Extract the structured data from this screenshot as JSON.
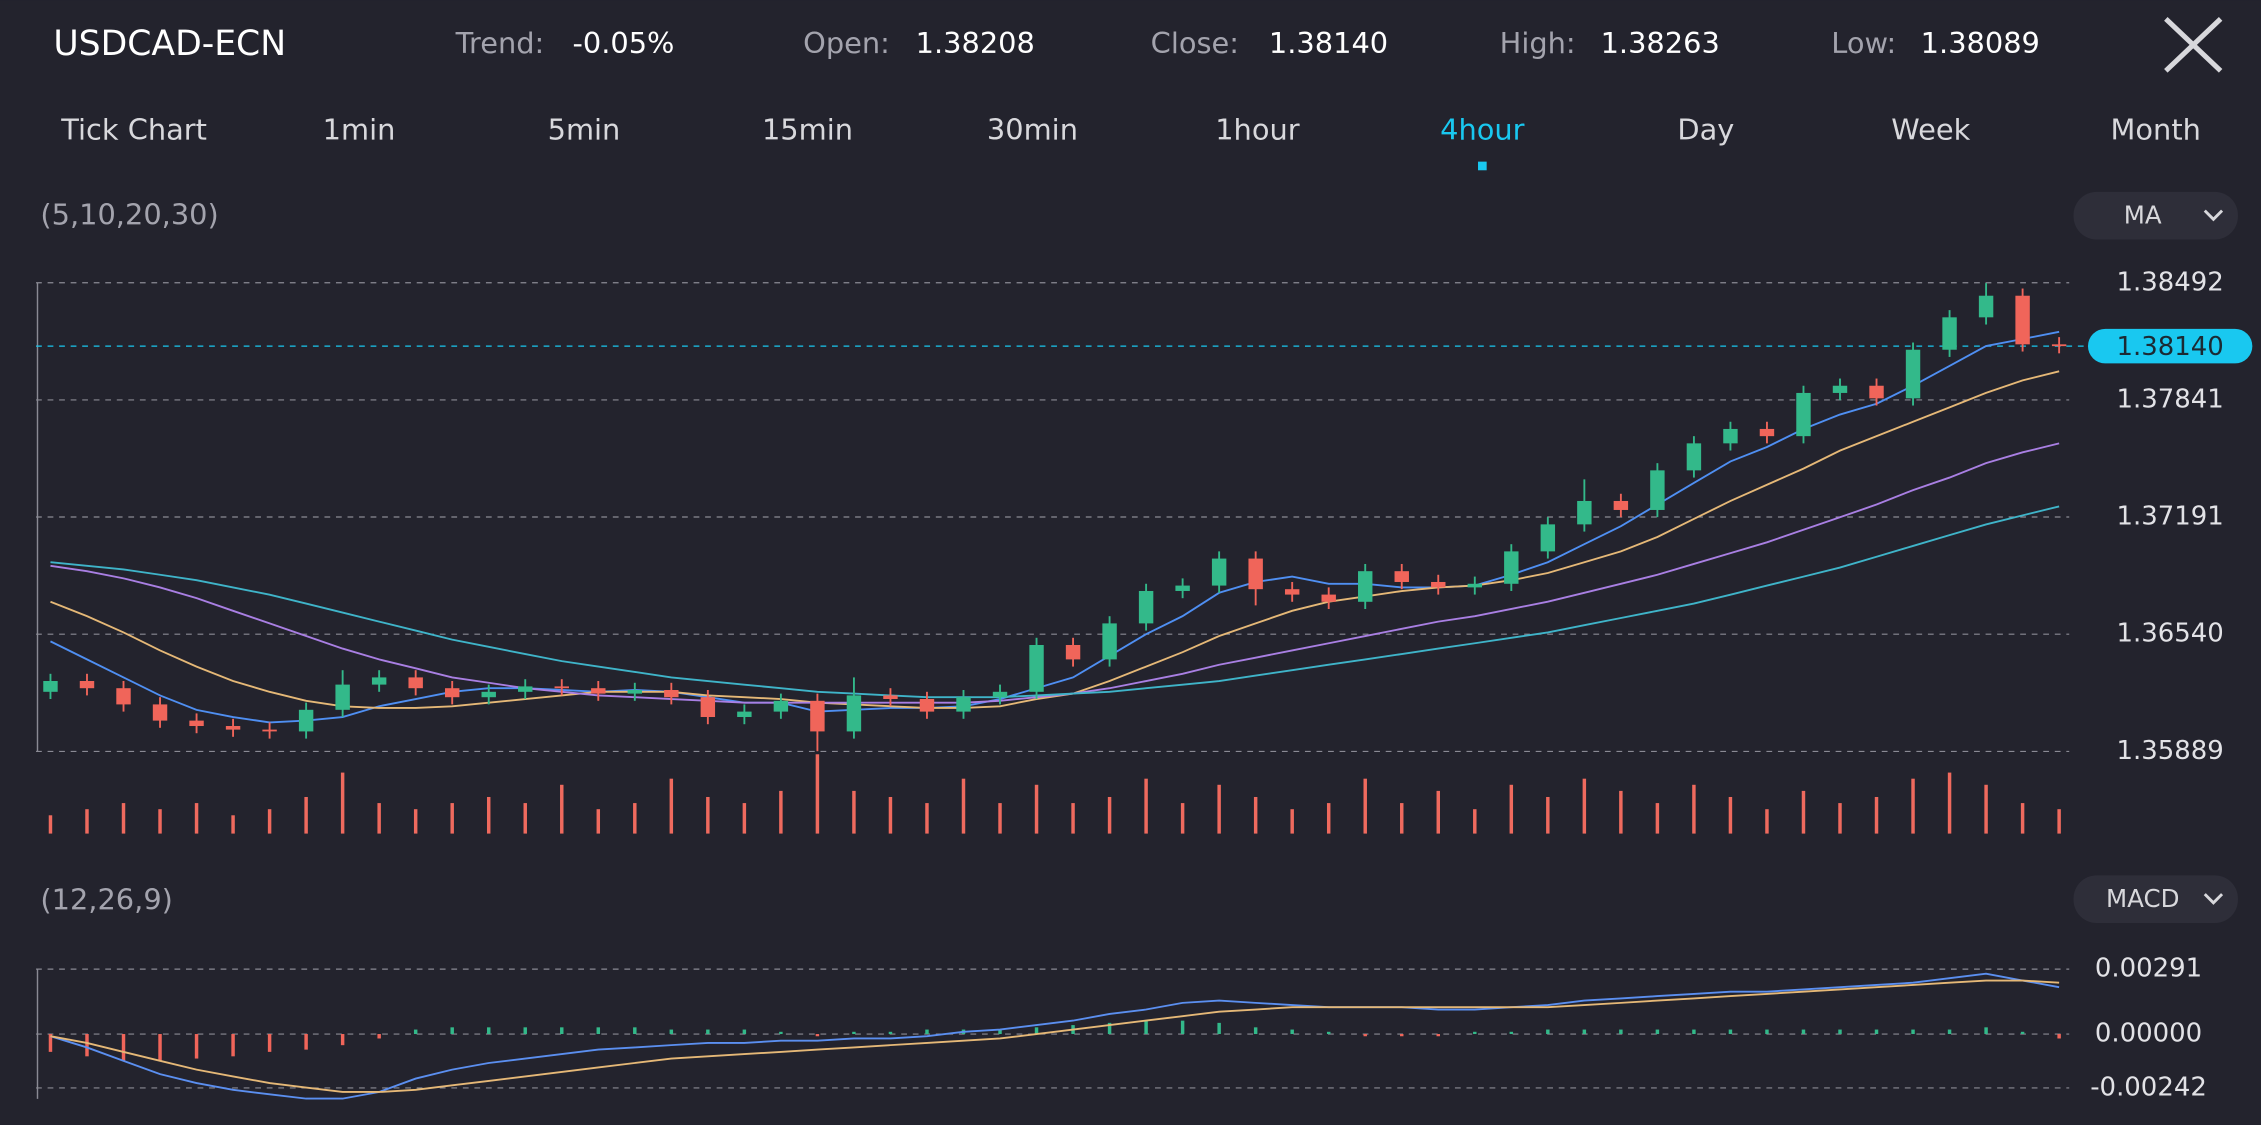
{
  "header": {
    "symbol": "USDCAD-ECN",
    "stats": [
      {
        "label": "Trend:",
        "value": "-0.05%"
      },
      {
        "label": "Open:",
        "value": "1.38208"
      },
      {
        "label": "Close:",
        "value": "1.38140"
      },
      {
        "label": "High:",
        "value": "1.38263"
      },
      {
        "label": "Low:",
        "value": "1.38089"
      }
    ]
  },
  "tabs": [
    "Tick Chart",
    "1min",
    "5min",
    "15min",
    "30min",
    "1hour",
    "4hour",
    "Day",
    "Week",
    "Month"
  ],
  "active_tab": 6,
  "chart_data": [
    {
      "type": "candlestick",
      "indicator_label": "(5,10,20,30)",
      "indicator_button": "MA",
      "up_color": "#33b98a",
      "down_color": "#f0655a",
      "volume_color": "#ef6a5e",
      "ylim": [
        1.35889,
        1.38492
      ],
      "yticks": [
        1.35889,
        {
          "value": 1.3654,
          "label": "1.36540"
        },
        1.37191,
        1.37841,
        1.38492
      ],
      "grid": true,
      "last_price": {
        "value": 1.3814,
        "label": "1.38140"
      },
      "last_price_color": "#19c8f0",
      "open": [
        1.3622,
        1.3628,
        1.3624,
        1.3615,
        1.3606,
        1.3603,
        1.3601,
        1.36,
        1.3612,
        1.3626,
        1.363,
        1.3624,
        1.3619,
        1.3622,
        1.3625,
        1.3624,
        1.3621,
        1.3623,
        1.3619,
        1.3608,
        1.3611,
        1.3617,
        1.36,
        1.362,
        1.3618,
        1.3611,
        1.3619,
        1.3622,
        1.3648,
        1.364,
        1.366,
        1.3678,
        1.3681,
        1.3696,
        1.3679,
        1.3676,
        1.3672,
        1.3689,
        1.3683,
        1.368,
        1.3682,
        1.37,
        1.3715,
        1.3728,
        1.3723,
        1.3745,
        1.376,
        1.3768,
        1.3764,
        1.3788,
        1.3792,
        1.3785,
        1.3812,
        1.383,
        1.3842,
        1.3815
      ],
      "high": [
        1.3632,
        1.3632,
        1.3628,
        1.3619,
        1.361,
        1.3607,
        1.3605,
        1.3616,
        1.3634,
        1.3634,
        1.3634,
        1.3628,
        1.3626,
        1.3629,
        1.3629,
        1.3628,
        1.3627,
        1.3627,
        1.3623,
        1.3615,
        1.3621,
        1.3621,
        1.363,
        1.3624,
        1.3622,
        1.3623,
        1.3626,
        1.3652,
        1.3652,
        1.3664,
        1.3682,
        1.3685,
        1.37,
        1.37,
        1.3683,
        1.368,
        1.3693,
        1.3693,
        1.3687,
        1.3686,
        1.3704,
        1.3719,
        1.374,
        1.3732,
        1.3749,
        1.3764,
        1.3772,
        1.3772,
        1.3792,
        1.3796,
        1.3796,
        1.3816,
        1.3834,
        1.3849,
        1.3846,
        1.3819
      ],
      "low": [
        1.3618,
        1.362,
        1.3611,
        1.3602,
        1.3599,
        1.3597,
        1.3596,
        1.3596,
        1.3608,
        1.3622,
        1.362,
        1.3615,
        1.3615,
        1.3618,
        1.362,
        1.3617,
        1.3617,
        1.3615,
        1.3604,
        1.3604,
        1.3607,
        1.3589,
        1.3596,
        1.3614,
        1.3607,
        1.3607,
        1.3615,
        1.3618,
        1.3636,
        1.3636,
        1.3656,
        1.3674,
        1.3677,
        1.367,
        1.3672,
        1.3668,
        1.3668,
        1.3679,
        1.3676,
        1.3676,
        1.3678,
        1.3696,
        1.3711,
        1.3719,
        1.3719,
        1.3741,
        1.3756,
        1.376,
        1.376,
        1.3784,
        1.3781,
        1.3781,
        1.3808,
        1.3826,
        1.3811,
        1.381
      ],
      "close": [
        1.3628,
        1.3624,
        1.3615,
        1.3606,
        1.3603,
        1.3601,
        1.36,
        1.3612,
        1.3626,
        1.363,
        1.3624,
        1.3619,
        1.3622,
        1.3625,
        1.3624,
        1.3621,
        1.3623,
        1.3619,
        1.3608,
        1.3611,
        1.3617,
        1.36,
        1.362,
        1.3618,
        1.3611,
        1.3619,
        1.3622,
        1.3648,
        1.364,
        1.366,
        1.3678,
        1.3681,
        1.3696,
        1.3679,
        1.3676,
        1.3672,
        1.3689,
        1.3683,
        1.368,
        1.3682,
        1.37,
        1.3715,
        1.3728,
        1.3723,
        1.3745,
        1.376,
        1.3768,
        1.3764,
        1.3788,
        1.3792,
        1.3785,
        1.3812,
        1.383,
        1.3842,
        1.3815,
        1.3814
      ],
      "volume": [
        3,
        4,
        5,
        4,
        5,
        3,
        4,
        6,
        10,
        5,
        4,
        5,
        6,
        5,
        8,
        4,
        5,
        9,
        6,
        5,
        7,
        13,
        7,
        6,
        5,
        9,
        5,
        8,
        5,
        6,
        9,
        5,
        8,
        6,
        4,
        5,
        9,
        5,
        7,
        4,
        8,
        6,
        9,
        7,
        5,
        8,
        6,
        4,
        7,
        5,
        6,
        9,
        10,
        8,
        5,
        4
      ],
      "series": [
        {
          "color": "#4f8ff2",
          "values": [
            1.365,
            1.364,
            1.363,
            1.362,
            1.3612,
            1.3608,
            1.3605,
            1.3606,
            1.3608,
            1.3614,
            1.3618,
            1.3622,
            1.3624,
            1.3624,
            1.3623,
            1.3622,
            1.3623,
            1.3622,
            1.3619,
            1.3616,
            1.3616,
            1.3611,
            1.3612,
            1.3613,
            1.3613,
            1.3614,
            1.3618,
            1.3624,
            1.363,
            1.3642,
            1.3654,
            1.3664,
            1.3677,
            1.3683,
            1.3686,
            1.3682,
            1.3682,
            1.368,
            1.368,
            1.3681,
            1.3687,
            1.3694,
            1.3704,
            1.3714,
            1.3726,
            1.3738,
            1.375,
            1.3758,
            1.3768,
            1.3776,
            1.3782,
            1.3792,
            1.3803,
            1.3814,
            1.3818,
            1.3822
          ]
        },
        {
          "color": "#e5b877",
          "values": [
            1.3672,
            1.3664,
            1.3655,
            1.3645,
            1.3636,
            1.3628,
            1.3622,
            1.3617,
            1.3614,
            1.3613,
            1.3613,
            1.3614,
            1.3616,
            1.3618,
            1.362,
            1.3622,
            1.3622,
            1.3622,
            1.362,
            1.3619,
            1.3618,
            1.3616,
            1.3615,
            1.3614,
            1.3613,
            1.3613,
            1.3614,
            1.3618,
            1.3621,
            1.3628,
            1.3636,
            1.3644,
            1.3653,
            1.366,
            1.3667,
            1.3672,
            1.3675,
            1.3678,
            1.368,
            1.3681,
            1.3684,
            1.3688,
            1.3694,
            1.37,
            1.3708,
            1.3718,
            1.3728,
            1.3737,
            1.3746,
            1.3756,
            1.3764,
            1.3772,
            1.378,
            1.3788,
            1.3795,
            1.38
          ]
        },
        {
          "color": "#a97fe3",
          "values": [
            1.3692,
            1.3689,
            1.3685,
            1.368,
            1.3674,
            1.3667,
            1.366,
            1.3653,
            1.3646,
            1.364,
            1.3635,
            1.363,
            1.3627,
            1.3624,
            1.3622,
            1.362,
            1.3619,
            1.3618,
            1.3617,
            1.3616,
            1.3616,
            1.3616,
            1.3616,
            1.3616,
            1.3616,
            1.3616,
            1.3617,
            1.3619,
            1.3621,
            1.3624,
            1.3628,
            1.3632,
            1.3637,
            1.3641,
            1.3645,
            1.3649,
            1.3653,
            1.3657,
            1.3661,
            1.3664,
            1.3668,
            1.3672,
            1.3677,
            1.3682,
            1.3687,
            1.3693,
            1.3699,
            1.3705,
            1.3712,
            1.3719,
            1.3726,
            1.3734,
            1.3741,
            1.3749,
            1.3755,
            1.376
          ]
        },
        {
          "color": "#3fb4c9",
          "values": [
            1.3694,
            1.3692,
            1.369,
            1.3687,
            1.3684,
            1.368,
            1.3676,
            1.3671,
            1.3666,
            1.3661,
            1.3656,
            1.3651,
            1.3647,
            1.3643,
            1.3639,
            1.3636,
            1.3633,
            1.363,
            1.3628,
            1.3626,
            1.3624,
            1.3622,
            1.3621,
            1.362,
            1.3619,
            1.3619,
            1.3619,
            1.362,
            1.3621,
            1.3622,
            1.3624,
            1.3626,
            1.3628,
            1.3631,
            1.3634,
            1.3637,
            1.364,
            1.3643,
            1.3646,
            1.3649,
            1.3652,
            1.3655,
            1.3659,
            1.3663,
            1.3667,
            1.3671,
            1.3676,
            1.3681,
            1.3686,
            1.3691,
            1.3697,
            1.3703,
            1.3709,
            1.3715,
            1.372,
            1.3725
          ]
        }
      ]
    },
    {
      "type": "macd",
      "indicator_label": "(12,26,9)",
      "indicator_button": "MACD",
      "up_color": "#33b98a",
      "down_color": "#f0655a",
      "ylim": [
        -0.00291,
        0.00291
      ],
      "yticks": [
        -0.00242,
        {
          "value": 0,
          "label": "0.00000"
        },
        0.00291
      ],
      "grid": true,
      "histogram": [
        -0.0008,
        -0.001,
        -0.0012,
        -0.0012,
        -0.0011,
        -0.001,
        -0.0008,
        -0.0007,
        -0.0005,
        -0.0002,
        0.0002,
        0.0003,
        0.0003,
        0.0003,
        0.0003,
        0.0003,
        0.0003,
        0.0002,
        0.0002,
        0.0002,
        0.0001,
        -0.0001,
        0.0001,
        0.0001,
        0.0002,
        0.0002,
        0.0002,
        0.0003,
        0.0004,
        0.0005,
        0.0006,
        0.0006,
        0.0005,
        0.0003,
        0.0002,
        0.0001,
        -0.0001,
        -0.0001,
        -0.0001,
        0.0001,
        0.0001,
        0.0002,
        0.0002,
        0.0002,
        0.0002,
        0.0002,
        0.0002,
        0.0002,
        0.0002,
        0.0002,
        0.0002,
        0.0002,
        0.0002,
        0.0003,
        0.0001,
        -0.0002
      ],
      "series": [
        {
          "color": "#5b8ff0",
          "values": [
            -0.0001,
            -0.0006,
            -0.0012,
            -0.0018,
            -0.0022,
            -0.0025,
            -0.0027,
            -0.0029,
            -0.0029,
            -0.0026,
            -0.002,
            -0.0016,
            -0.0013,
            -0.0011,
            -0.0009,
            -0.0007,
            -0.0006,
            -0.0005,
            -0.0004,
            -0.0004,
            -0.0003,
            -0.0003,
            -0.0002,
            -0.0002,
            -0.0001,
            0.0001,
            0.0002,
            0.0004,
            0.0006,
            0.0009,
            0.0011,
            0.0014,
            0.0015,
            0.0014,
            0.0013,
            0.0012,
            0.0012,
            0.0012,
            0.0011,
            0.0011,
            0.0012,
            0.0013,
            0.0015,
            0.0016,
            0.0017,
            0.0018,
            0.0019,
            0.0019,
            0.002,
            0.0021,
            0.0022,
            0.0023,
            0.0025,
            0.0027,
            0.0024,
            0.0021
          ]
        },
        {
          "color": "#e5b877",
          "values": [
            -0.0001,
            -0.0004,
            -0.0008,
            -0.0012,
            -0.0016,
            -0.0019,
            -0.0022,
            -0.0024,
            -0.0026,
            -0.0026,
            -0.0025,
            -0.0023,
            -0.0021,
            -0.0019,
            -0.0017,
            -0.0015,
            -0.0013,
            -0.0011,
            -0.001,
            -0.0009,
            -0.0008,
            -0.0007,
            -0.0006,
            -0.0005,
            -0.0004,
            -0.0003,
            -0.0002,
            0.0,
            0.0002,
            0.0004,
            0.0006,
            0.0008,
            0.001,
            0.0011,
            0.0012,
            0.0012,
            0.0012,
            0.0012,
            0.0012,
            0.0012,
            0.0012,
            0.0012,
            0.0013,
            0.0014,
            0.0015,
            0.0016,
            0.0017,
            0.0018,
            0.0019,
            0.002,
            0.0021,
            0.0022,
            0.0023,
            0.0024,
            0.0024,
            0.0023
          ]
        }
      ]
    }
  ]
}
